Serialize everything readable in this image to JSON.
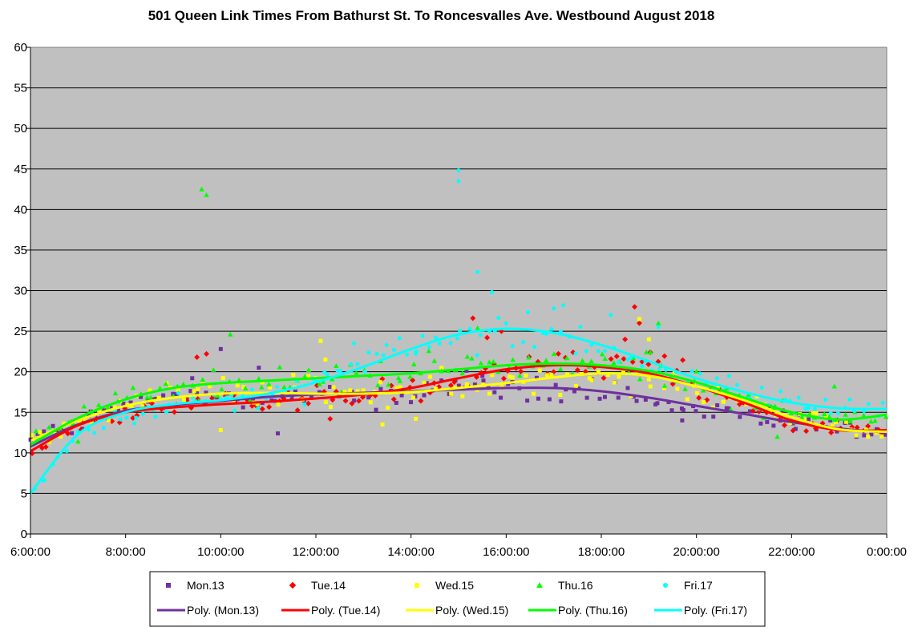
{
  "chart_data": {
    "type": "scatter",
    "title": "501 Queen Link Times From Bathurst St. To Roncesvalles Ave. Westbound August 2018",
    "xlabel": "",
    "ylabel": "",
    "x_range_hours": [
      6,
      24
    ],
    "ylim": [
      0,
      60
    ],
    "y_ticks": [
      "0",
      "5",
      "10",
      "15",
      "20",
      "25",
      "30",
      "35",
      "40",
      "45",
      "50",
      "55",
      "60"
    ],
    "x_ticks": [
      "6:00:00",
      "8:00:00",
      "10:00:00",
      "12:00:00",
      "14:00:00",
      "16:00:00",
      "18:00:00",
      "20:00:00",
      "22:00:00",
      "0:00:00"
    ],
    "grid": "horizontal",
    "legend": "bottom",
    "series": [
      {
        "name": "Mon.13",
        "trend_name": "Poly. (Mon.13)",
        "color": "#7030a0",
        "marker": "square",
        "trend": [
          [
            6,
            10.8
          ],
          [
            7,
            13.5
          ],
          [
            8,
            15.2
          ],
          [
            9,
            15.9
          ],
          [
            10,
            16.4
          ],
          [
            11,
            16.9
          ],
          [
            12,
            17.2
          ],
          [
            13,
            17.4
          ],
          [
            14,
            17.6
          ],
          [
            15,
            17.8
          ],
          [
            16,
            18.0
          ],
          [
            17,
            18.0
          ],
          [
            18,
            17.6
          ],
          [
            19,
            16.8
          ],
          [
            20,
            15.8
          ],
          [
            21,
            14.8
          ],
          [
            22,
            13.8
          ],
          [
            23,
            13.0
          ],
          [
            24,
            12.5
          ]
        ],
        "anchors": [
          [
            6,
            11.5
          ],
          [
            7,
            13.5
          ],
          [
            8,
            15.5
          ],
          [
            9,
            17
          ],
          [
            10,
            17
          ],
          [
            11,
            17
          ],
          [
            12,
            17
          ],
          [
            13,
            17
          ],
          [
            14,
            17.5
          ],
          [
            15,
            18
          ],
          [
            16,
            18
          ],
          [
            17,
            17.5
          ],
          [
            18,
            17.5
          ],
          [
            19,
            16.5
          ],
          [
            20,
            15
          ],
          [
            21,
            14.5
          ],
          [
            22,
            13.5
          ],
          [
            23,
            13
          ],
          [
            24,
            12.5
          ]
        ],
        "outliers": [
          [
            10.0,
            22.8
          ],
          [
            9.4,
            19.2
          ],
          [
            10.8,
            20.5
          ],
          [
            15.5,
            19.5
          ],
          [
            19.7,
            14.0
          ],
          [
            11.2,
            12.4
          ]
        ]
      },
      {
        "name": "Tue.14",
        "trend_name": "Poly. (Tue.14)",
        "color": "#ff0000",
        "marker": "diamond",
        "trend": [
          [
            6,
            10.2
          ],
          [
            7,
            13.4
          ],
          [
            8,
            15.0
          ],
          [
            9,
            15.6
          ],
          [
            10,
            16.0
          ],
          [
            11,
            16.3
          ],
          [
            12,
            16.7
          ],
          [
            13,
            17.2
          ],
          [
            14,
            18.0
          ],
          [
            15,
            19.2
          ],
          [
            16,
            20.3
          ],
          [
            17,
            20.8
          ],
          [
            18,
            20.6
          ],
          [
            19,
            19.8
          ],
          [
            20,
            18.2
          ],
          [
            21,
            16.2
          ],
          [
            22,
            14.0
          ],
          [
            23,
            12.8
          ],
          [
            24,
            12.8
          ]
        ],
        "anchors": [
          [
            6,
            10.5
          ],
          [
            7,
            13
          ],
          [
            8,
            15
          ],
          [
            9,
            16
          ],
          [
            10,
            16
          ],
          [
            11,
            16.5
          ],
          [
            12,
            17
          ],
          [
            13,
            17
          ],
          [
            14,
            18
          ],
          [
            15,
            19.5
          ],
          [
            16,
            21
          ],
          [
            17,
            21
          ],
          [
            18,
            21
          ],
          [
            19,
            22
          ],
          [
            20,
            18
          ],
          [
            21,
            16
          ],
          [
            22,
            14
          ],
          [
            23,
            13
          ],
          [
            24,
            12.5
          ]
        ],
        "outliers": [
          [
            9.7,
            22.2
          ],
          [
            15.3,
            26.6
          ],
          [
            15.9,
            25.0
          ],
          [
            18.7,
            28.0
          ],
          [
            18.8,
            26.0
          ],
          [
            18.5,
            24.0
          ],
          [
            12.3,
            14.2
          ],
          [
            9.5,
            21.8
          ],
          [
            15.6,
            24.2
          ]
        ]
      },
      {
        "name": "Wed.15",
        "trend_name": "Poly. (Wed.15)",
        "color": "#ffff00",
        "marker": "square",
        "trend": [
          [
            6,
            11.5
          ],
          [
            7,
            14.0
          ],
          [
            8,
            15.8
          ],
          [
            9,
            16.8
          ],
          [
            10,
            17.3
          ],
          [
            11,
            17.4
          ],
          [
            12,
            17.3
          ],
          [
            13,
            17.3
          ],
          [
            14,
            17.5
          ],
          [
            15,
            18.0
          ],
          [
            16,
            18.6
          ],
          [
            17,
            19.3
          ],
          [
            18,
            19.8
          ],
          [
            19,
            19.5
          ],
          [
            20,
            18.2
          ],
          [
            21,
            16.5
          ],
          [
            22,
            14.4
          ],
          [
            23,
            12.9
          ],
          [
            24,
            12.6
          ]
        ],
        "anchors": [
          [
            6,
            12
          ],
          [
            7,
            14
          ],
          [
            8,
            16
          ],
          [
            9,
            17.5
          ],
          [
            10,
            17.5
          ],
          [
            11,
            17.5
          ],
          [
            12,
            17.5
          ],
          [
            13,
            17.5
          ],
          [
            14,
            17.5
          ],
          [
            15,
            18
          ],
          [
            16,
            18.5
          ],
          [
            17,
            19.5
          ],
          [
            18,
            20
          ],
          [
            19,
            19.5
          ],
          [
            20,
            18
          ],
          [
            21,
            16.5
          ],
          [
            22,
            14.5
          ],
          [
            23,
            13
          ],
          [
            24,
            12.5
          ]
        ],
        "outliers": [
          [
            12.1,
            23.8
          ],
          [
            12.2,
            21.5
          ],
          [
            18.8,
            26.5
          ],
          [
            19.0,
            24.0
          ],
          [
            10.0,
            12.8
          ],
          [
            13.4,
            13.5
          ],
          [
            14.1,
            14.2
          ]
        ]
      },
      {
        "name": "Thu.16",
        "trend_name": "Poly. (Thu.16)",
        "color": "#00ff00",
        "marker": "triangle",
        "trend": [
          [
            6,
            11.0
          ],
          [
            7,
            14.3
          ],
          [
            8,
            16.6
          ],
          [
            9,
            18.0
          ],
          [
            10,
            18.6
          ],
          [
            11,
            18.9
          ],
          [
            12,
            19.2
          ],
          [
            13,
            19.5
          ],
          [
            14,
            19.8
          ],
          [
            15,
            20.3
          ],
          [
            16,
            20.8
          ],
          [
            17,
            21.0
          ],
          [
            18,
            20.8
          ],
          [
            19,
            20.1
          ],
          [
            20,
            18.7
          ],
          [
            21,
            16.8
          ],
          [
            22,
            15.0
          ],
          [
            23,
            14.1
          ],
          [
            24,
            14.7
          ]
        ],
        "anchors": [
          [
            6,
            11.5
          ],
          [
            7,
            14.5
          ],
          [
            8,
            17
          ],
          [
            9,
            18
          ],
          [
            10,
            18.5
          ],
          [
            11,
            19
          ],
          [
            12,
            19
          ],
          [
            13,
            19.5
          ],
          [
            14,
            20
          ],
          [
            15,
            20.5
          ],
          [
            16,
            21
          ],
          [
            17,
            21
          ],
          [
            18,
            21
          ],
          [
            19,
            20.5
          ],
          [
            20,
            18.5
          ],
          [
            21,
            16.5
          ],
          [
            22,
            15
          ],
          [
            23,
            14
          ],
          [
            24,
            15
          ]
        ],
        "outliers": [
          [
            9.6,
            42.5
          ],
          [
            9.7,
            41.8
          ],
          [
            10.2,
            24.6
          ],
          [
            19.2,
            26.0
          ],
          [
            15.4,
            25.4
          ],
          [
            22.9,
            18.2
          ],
          [
            21.7,
            12.0
          ],
          [
            7.0,
            11.4
          ]
        ]
      },
      {
        "name": "Fri.17",
        "trend_name": "Poly. (Fri.17)",
        "color": "#00ffff",
        "marker": "circle",
        "trend": [
          [
            6,
            5.0
          ],
          [
            7,
            12.3
          ],
          [
            8,
            15.0
          ],
          [
            9,
            16.0
          ],
          [
            10,
            16.5
          ],
          [
            11,
            17.3
          ],
          [
            12,
            18.7
          ],
          [
            13,
            20.6
          ],
          [
            14,
            22.8
          ],
          [
            15,
            24.6
          ],
          [
            16,
            25.3
          ],
          [
            17,
            24.8
          ],
          [
            18,
            23.3
          ],
          [
            19,
            21.3
          ],
          [
            20,
            19.2
          ],
          [
            21,
            17.5
          ],
          [
            22,
            16.2
          ],
          [
            23,
            15.5
          ],
          [
            24,
            15.4
          ]
        ],
        "anchors": [
          [
            6,
            5
          ],
          [
            7,
            12.5
          ],
          [
            8,
            15
          ],
          [
            9,
            16
          ],
          [
            10,
            16.5
          ],
          [
            11,
            17
          ],
          [
            12,
            19
          ],
          [
            13,
            21
          ],
          [
            14,
            23
          ],
          [
            15,
            24.5
          ],
          [
            16,
            25
          ],
          [
            17,
            25
          ],
          [
            18,
            23
          ],
          [
            19,
            21
          ],
          [
            20,
            19
          ],
          [
            21,
            17.5
          ],
          [
            22,
            16
          ],
          [
            23,
            15.5
          ],
          [
            24,
            15.5
          ]
        ],
        "outliers": [
          [
            15.0,
            44.8
          ],
          [
            15.0,
            43.5
          ],
          [
            15.4,
            32.3
          ],
          [
            15.7,
            29.8
          ],
          [
            17.0,
            27.8
          ],
          [
            17.2,
            28.2
          ],
          [
            18.2,
            27.0
          ],
          [
            19.2,
            25.5
          ],
          [
            12.8,
            23.5
          ],
          [
            14.1,
            22.2
          ]
        ]
      }
    ]
  }
}
